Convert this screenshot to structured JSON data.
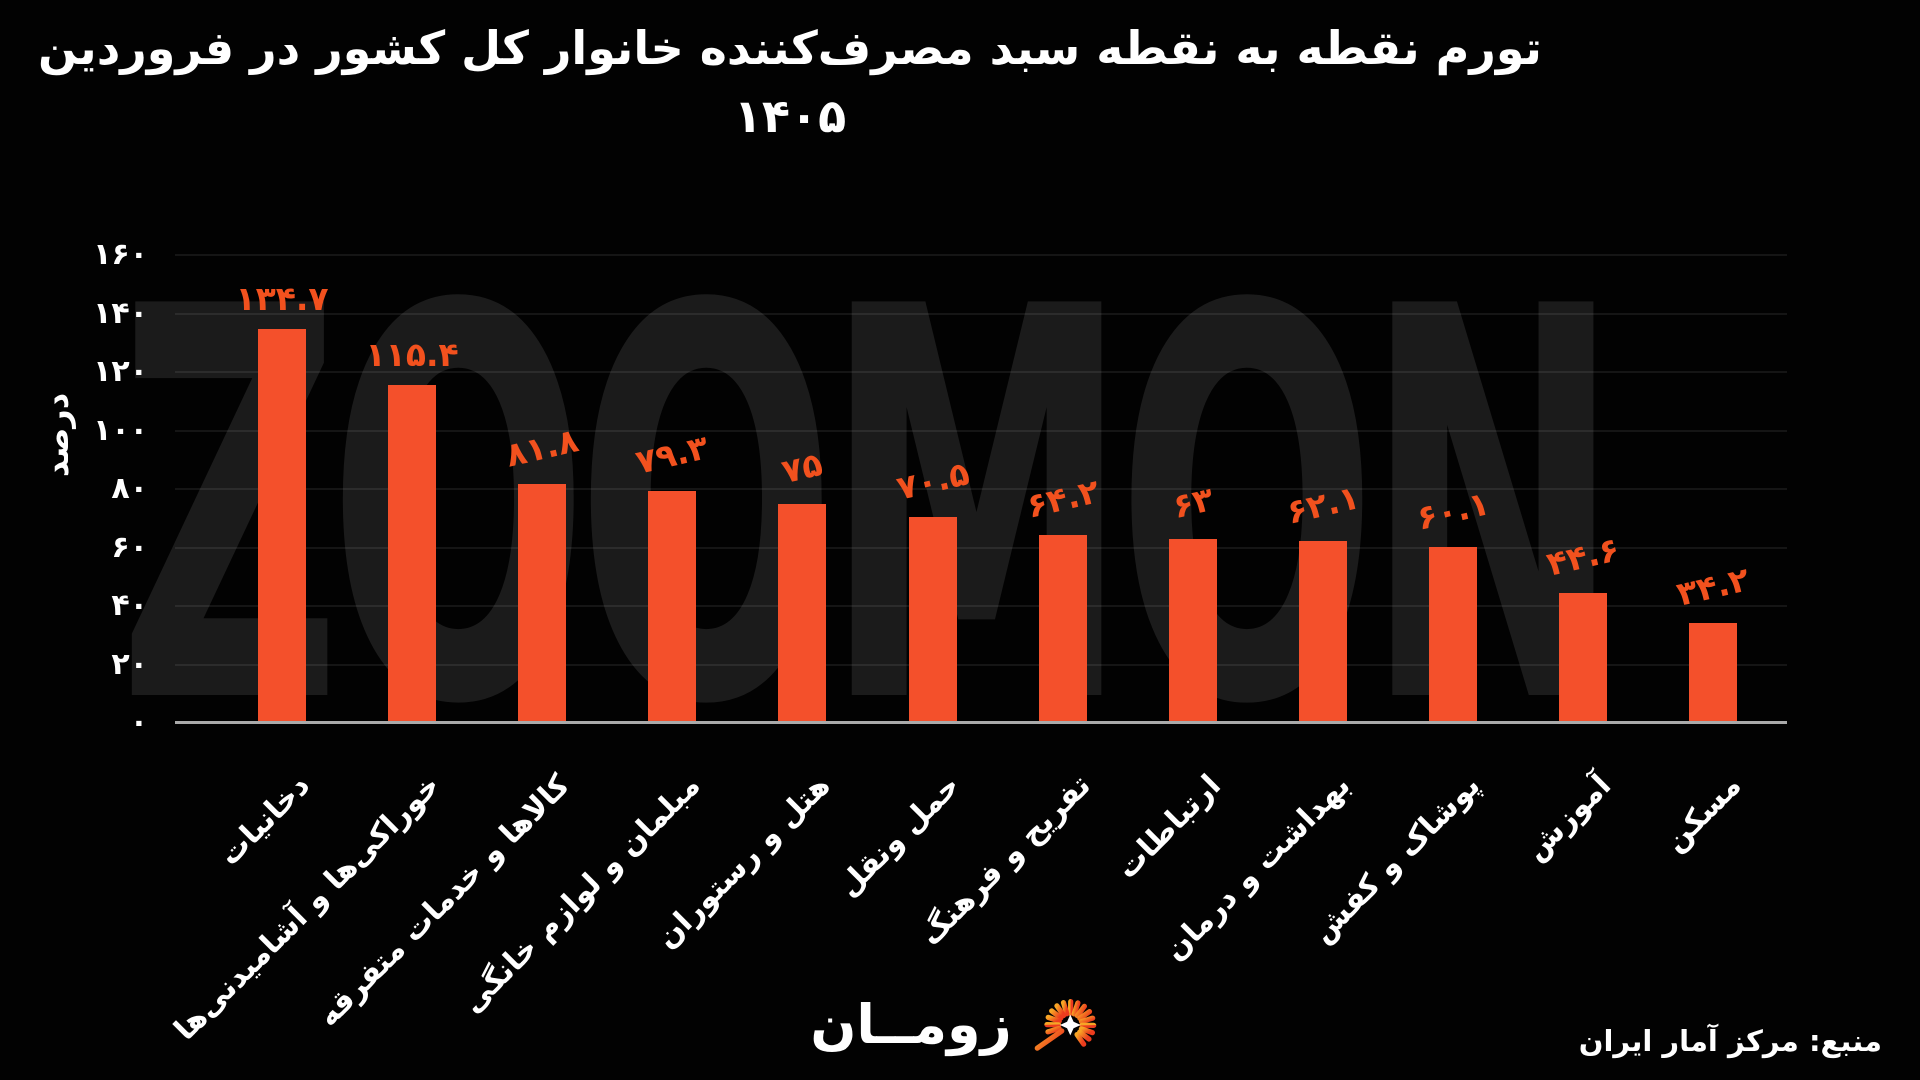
{
  "title": {
    "line1": "تورم نقطه به نقطه سبد مصرف‌کننده خانوار کل کشور در فروردین",
    "line2": "۱۴۰۵"
  },
  "watermark": "ZOOMON",
  "y_axis": {
    "title": "درصد",
    "ticks": [
      "۱۶۰",
      "۱۴۰",
      "۱۲۰",
      "۱۰۰",
      "۸۰",
      "۶۰",
      "۴۰",
      "۲۰",
      "۰"
    ],
    "tick_values": [
      160,
      140,
      120,
      100,
      80,
      60,
      40,
      20,
      0
    ]
  },
  "chart_data": {
    "type": "bar",
    "title": "تورم نقطه به نقطه سبد مصرف‌کننده خانوار کل کشور در فروردین ۱۴۰۵",
    "xlabel": "",
    "ylabel": "درصد",
    "ylim": [
      0,
      160
    ],
    "grid": true,
    "categories": [
      "دخانیات",
      "خوراکی‌ها و آشامیدنی‌ها",
      "کالاها و خدمات متفرقه",
      "مبلمان و لوازم خانگی",
      "هتل و رستوران",
      "حمل ونقل",
      "تفریح و فرهنگ",
      "ارتباطات",
      "بهداشت و درمان",
      "پوشاک و کفش",
      "آموزش",
      "مسکن"
    ],
    "values": [
      134.7,
      115.4,
      81.8,
      79.3,
      75,
      70.5,
      64.2,
      63,
      62.1,
      60.1,
      44.6,
      34.2
    ],
    "value_labels": [
      "۱۳۴.۷",
      "۱۱۵.۴",
      "۸۱.۸",
      "۷۹.۳",
      "۷۵",
      "۷۰.۵",
      "۶۴.۲",
      "۶۳",
      "۶۲.۱",
      "۶۰.۱",
      "۴۴.۶",
      "۳۴.۲"
    ],
    "bar_color": "#f4502b",
    "label_color": "#f2511e"
  },
  "footer": {
    "logo_text": "زومــان",
    "logo_icon": "sunburst-logo-icon",
    "source": "منبع: مرکز آمار ایران"
  }
}
